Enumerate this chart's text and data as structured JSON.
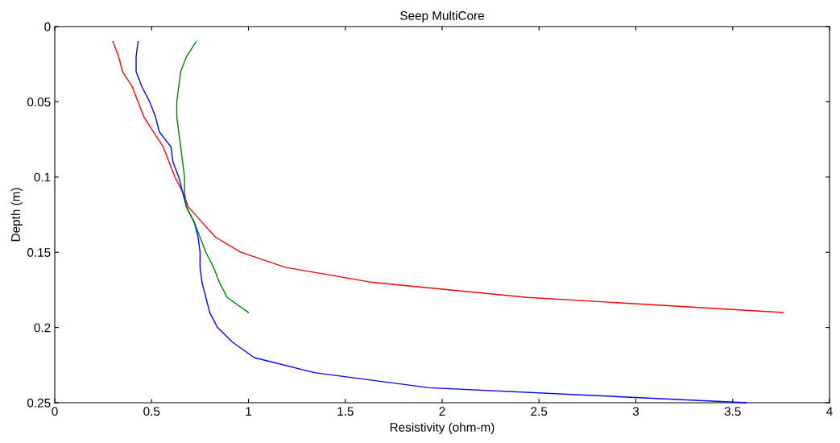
{
  "chart_data": {
    "type": "line",
    "title": "Seep MultiCore",
    "xlabel": "Resistivity (ohm-m)",
    "ylabel": "Depth (m)",
    "xlim": [
      0,
      4
    ],
    "xticks": [
      0,
      0.5,
      1,
      1.5,
      2,
      2.5,
      3,
      3.5,
      4
    ],
    "ylim": [
      0.25,
      0
    ],
    "yticks": [
      0,
      0.05,
      0.1,
      0.15,
      0.2,
      0.25
    ],
    "grid": false,
    "marker": "none",
    "line_style": "solid",
    "series": [
      {
        "color": "#ff0000",
        "x": [
          0.3,
          0.33,
          0.35,
          0.4,
          0.43,
          0.46,
          0.51,
          0.56,
          0.59,
          0.62,
          0.66,
          0.69,
          0.76,
          0.83,
          0.96,
          1.19,
          1.64,
          2.44,
          3.76
        ],
        "values": [
          0.01,
          0.02,
          0.03,
          0.04,
          0.05,
          0.06,
          0.07,
          0.08,
          0.09,
          0.1,
          0.11,
          0.12,
          0.13,
          0.14,
          0.15,
          0.16,
          0.17,
          0.18,
          0.19
        ]
      },
      {
        "color": "#0000ff",
        "x": [
          0.43,
          0.42,
          0.42,
          0.45,
          0.49,
          0.52,
          0.54,
          0.6,
          0.61,
          0.64,
          0.66,
          0.68,
          0.72,
          0.74,
          0.75,
          0.75,
          0.76,
          0.78,
          0.8,
          0.84,
          0.92,
          1.03,
          1.34,
          1.93,
          3.57
        ],
        "values": [
          0.01,
          0.02,
          0.03,
          0.04,
          0.05,
          0.06,
          0.07,
          0.08,
          0.09,
          0.1,
          0.11,
          0.12,
          0.13,
          0.14,
          0.15,
          0.16,
          0.17,
          0.18,
          0.19,
          0.2,
          0.21,
          0.22,
          0.23,
          0.24,
          0.25
        ]
      },
      {
        "color": "#008000",
        "x": [
          0.73,
          0.68,
          0.65,
          0.64,
          0.63,
          0.63,
          0.64,
          0.65,
          0.66,
          0.67,
          0.67,
          0.68,
          0.72,
          0.75,
          0.78,
          0.82,
          0.85,
          0.89,
          1.0
        ],
        "values": [
          0.01,
          0.02,
          0.03,
          0.04,
          0.05,
          0.06,
          0.07,
          0.08,
          0.09,
          0.1,
          0.11,
          0.12,
          0.13,
          0.14,
          0.15,
          0.16,
          0.17,
          0.18,
          0.19
        ]
      }
    ]
  }
}
